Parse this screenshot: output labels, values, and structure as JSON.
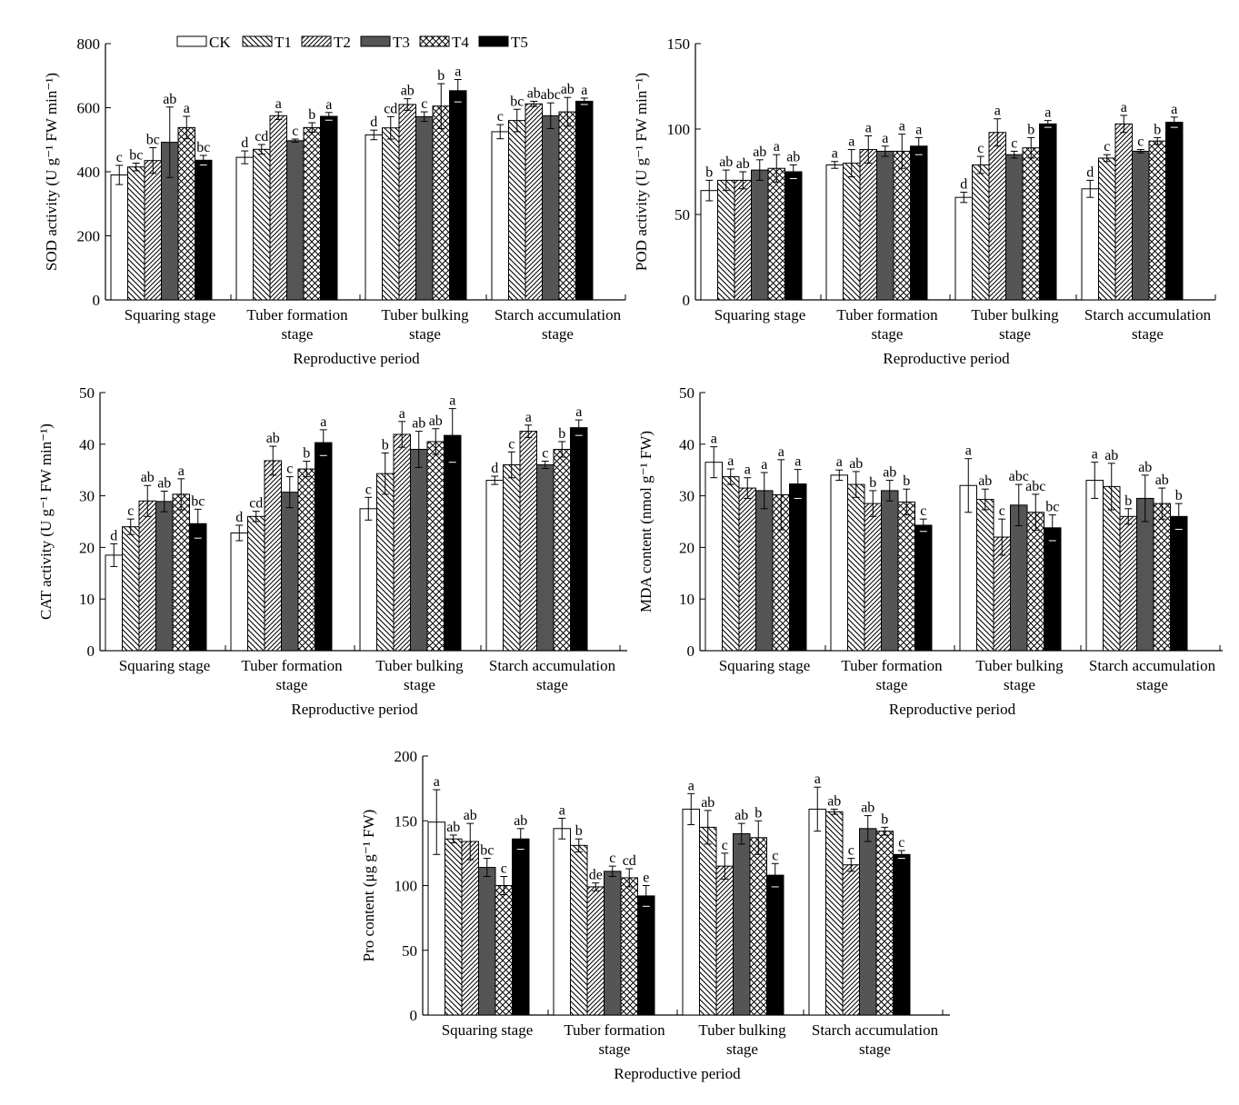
{
  "legend": {
    "items": [
      {
        "label": "CK",
        "pattern": "white"
      },
      {
        "label": "T1",
        "pattern": "back-hatch"
      },
      {
        "label": "T2",
        "pattern": "fwd-hatch"
      },
      {
        "label": "T3",
        "pattern": "dark-gray"
      },
      {
        "label": "T4",
        "pattern": "cross-hatch"
      },
      {
        "label": "T5",
        "pattern": "black"
      }
    ]
  },
  "chart_data": [
    {
      "type": "bar",
      "ylabel": "SOD activity (U g⁻¹ FW min⁻¹)",
      "xlabel": "Reproductive period",
      "ylim": [
        0,
        800
      ],
      "yticks": [
        0,
        200,
        400,
        600,
        800
      ],
      "categories": [
        "Squaring stage",
        "Tuber formation\nstage",
        "Tuber bulking\nstage",
        "Starch accumulation\nstage"
      ],
      "series": [
        {
          "name": "CK",
          "values": [
            390,
            445,
            515,
            525
          ],
          "errors": [
            30,
            20,
            15,
            22
          ],
          "letters": [
            "c",
            "d",
            "d",
            "c"
          ]
        },
        {
          "name": "T1",
          "values": [
            415,
            470,
            537,
            560
          ],
          "errors": [
            12,
            15,
            35,
            35
          ],
          "letters": [
            "bc",
            "cd",
            "cd",
            "bc"
          ]
        },
        {
          "name": "T2",
          "values": [
            435,
            575,
            610,
            612
          ],
          "errors": [
            40,
            12,
            18,
            8
          ],
          "letters": [
            "bc",
            "a",
            "ab",
            "ab"
          ]
        },
        {
          "name": "T3",
          "values": [
            492,
            497,
            572,
            575
          ],
          "errors": [
            110,
            5,
            15,
            40
          ],
          "letters": [
            "ab",
            "c",
            "c",
            "abc"
          ]
        },
        {
          "name": "T4",
          "values": [
            538,
            538,
            605,
            587
          ],
          "errors": [
            35,
            15,
            70,
            45
          ],
          "letters": [
            "a",
            "b",
            "b",
            "ab"
          ]
        },
        {
          "name": "T5",
          "values": [
            436,
            573,
            653,
            620
          ],
          "errors": [
            15,
            12,
            35,
            10
          ],
          "letters": [
            "bc",
            "a",
            "a",
            "a"
          ]
        }
      ]
    },
    {
      "type": "bar",
      "ylabel": "POD activity (U g⁻¹ FW min⁻¹)",
      "xlabel": "Reproductive period",
      "ylim": [
        0,
        150
      ],
      "yticks": [
        0,
        50,
        100,
        150
      ],
      "categories": [
        "Squaring stage",
        "Tuber formation\nstage",
        "Tuber bulking\nstage",
        "Starch accumulation\nstage"
      ],
      "series": [
        {
          "name": "CK",
          "values": [
            64,
            79,
            60,
            65
          ],
          "errors": [
            6,
            2,
            3,
            5
          ],
          "letters": [
            "b",
            "a",
            "d",
            "d"
          ]
        },
        {
          "name": "T1",
          "values": [
            70,
            80,
            79,
            83
          ],
          "errors": [
            6,
            8,
            5,
            2
          ],
          "letters": [
            "ab",
            "a",
            "c",
            "c"
          ]
        },
        {
          "name": "T2",
          "values": [
            70,
            88,
            98,
            103
          ],
          "errors": [
            5,
            8,
            8,
            5
          ],
          "letters": [
            "ab",
            "a",
            "a",
            "a"
          ]
        },
        {
          "name": "T3",
          "values": [
            76,
            87,
            85,
            87
          ],
          "errors": [
            6,
            3,
            2,
            1
          ],
          "letters": [
            "ab",
            "a",
            "c",
            "c"
          ]
        },
        {
          "name": "T4",
          "values": [
            77,
            87,
            89,
            93
          ],
          "errors": [
            8,
            10,
            6,
            2
          ],
          "letters": [
            "a",
            "a",
            "b",
            "b"
          ]
        },
        {
          "name": "T5",
          "values": [
            75,
            90,
            103,
            104
          ],
          "errors": [
            4,
            5,
            2,
            3
          ],
          "letters": [
            "ab",
            "a",
            "a",
            "a"
          ]
        }
      ]
    },
    {
      "type": "bar",
      "ylabel": "CAT activity (U g⁻¹ FW min⁻¹)",
      "xlabel": "Reproductive period",
      "ylim": [
        0,
        50
      ],
      "yticks": [
        0,
        10,
        20,
        30,
        40,
        50
      ],
      "categories": [
        "Squaring stage",
        "Tuber formation\nstage",
        "Tuber bulking\nstage",
        "Starch accumulation\nstage"
      ],
      "series": [
        {
          "name": "CK",
          "values": [
            18.5,
            22.8,
            27.5,
            33
          ],
          "errors": [
            2.2,
            1.5,
            2.2,
            0.8
          ],
          "letters": [
            "d",
            "d",
            "c",
            "d"
          ]
        },
        {
          "name": "T1",
          "values": [
            24,
            26,
            34.3,
            36
          ],
          "errors": [
            1.5,
            1,
            4,
            2.5
          ],
          "letters": [
            "c",
            "cd",
            "b",
            "c"
          ]
        },
        {
          "name": "T2",
          "values": [
            29,
            36.8,
            41.9,
            42.5
          ],
          "errors": [
            3,
            2.8,
            2.5,
            1.2
          ],
          "letters": [
            "ab",
            "ab",
            "a",
            "a"
          ]
        },
        {
          "name": "T3",
          "values": [
            28.9,
            30.7,
            39,
            36
          ],
          "errors": [
            2,
            3,
            3.5,
            0.7
          ],
          "letters": [
            "ab",
            "c",
            "ab",
            "c"
          ]
        },
        {
          "name": "T4",
          "values": [
            30.3,
            35.2,
            40.5,
            39
          ],
          "errors": [
            3,
            1.5,
            2.5,
            1.5
          ],
          "letters": [
            "a",
            "b",
            "ab",
            "b"
          ]
        },
        {
          "name": "T5",
          "values": [
            24.6,
            40.3,
            41.7,
            43.2
          ],
          "errors": [
            2.8,
            2.5,
            5.2,
            1.5
          ],
          "letters": [
            "bc",
            "a",
            "a",
            "a"
          ]
        }
      ]
    },
    {
      "type": "bar",
      "ylabel": "MDA content (nmol g⁻¹ FW)",
      "xlabel": "Reproductive period",
      "ylim": [
        0,
        50
      ],
      "yticks": [
        0,
        10,
        20,
        30,
        40,
        50
      ],
      "categories": [
        "Squaring stage",
        "Tuber formation\nstage",
        "Tuber bulking\nstage",
        "Starch accumulation\nstage"
      ],
      "series": [
        {
          "name": "CK",
          "values": [
            36.5,
            34,
            32,
            33
          ],
          "errors": [
            3,
            1,
            5.2,
            3.5
          ],
          "letters": [
            "a",
            "a",
            "a",
            "a"
          ]
        },
        {
          "name": "T1",
          "values": [
            33.7,
            32.2,
            29.3,
            31.8
          ],
          "errors": [
            1.5,
            2.5,
            2,
            4.5
          ],
          "letters": [
            "a",
            "ab",
            "ab",
            "ab"
          ]
        },
        {
          "name": "T2",
          "values": [
            31.5,
            28.5,
            22,
            26
          ],
          "errors": [
            2,
            2.5,
            3.5,
            1.5
          ],
          "letters": [
            "a",
            "b",
            "c",
            "b"
          ]
        },
        {
          "name": "T3",
          "values": [
            31,
            31,
            28.2,
            29.5
          ],
          "errors": [
            3.5,
            2,
            4,
            4.5
          ],
          "letters": [
            "a",
            "ab",
            "abc",
            "ab"
          ]
        },
        {
          "name": "T4",
          "values": [
            30.2,
            28.8,
            26.8,
            28.5
          ],
          "errors": [
            6.8,
            2.5,
            3.5,
            3
          ],
          "letters": [
            "a",
            "b",
            "abc",
            "ab"
          ]
        },
        {
          "name": "T5",
          "values": [
            32.3,
            24.3,
            23.8,
            26
          ],
          "errors": [
            2.8,
            1.2,
            2.5,
            2.5
          ],
          "letters": [
            "a",
            "c",
            "bc",
            "b"
          ]
        }
      ]
    },
    {
      "type": "bar",
      "ylabel": "Pro content (μg g⁻¹ FW)",
      "xlabel": "Reproductive period",
      "ylim": [
        0,
        200
      ],
      "yticks": [
        0,
        50,
        100,
        150,
        200
      ],
      "categories": [
        "Squaring stage",
        "Tuber formation\nstage",
        "Tuber bulking\nstage",
        "Starch accumulation\nstage"
      ],
      "series": [
        {
          "name": "CK",
          "values": [
            149,
            144,
            159,
            159
          ],
          "errors": [
            25,
            8,
            12,
            17
          ],
          "letters": [
            "a",
            "a",
            "a",
            "a"
          ]
        },
        {
          "name": "T1",
          "values": [
            136,
            131,
            145,
            157
          ],
          "errors": [
            3,
            5,
            13,
            2
          ],
          "letters": [
            "ab",
            "b",
            "ab",
            "ab"
          ]
        },
        {
          "name": "T2",
          "values": [
            134,
            99,
            115,
            116
          ],
          "errors": [
            14,
            3,
            10,
            5
          ],
          "letters": [
            "ab",
            "de",
            "c",
            "c"
          ]
        },
        {
          "name": "T3",
          "values": [
            114,
            111,
            140,
            144
          ],
          "errors": [
            7,
            4,
            8,
            10
          ],
          "letters": [
            "bc",
            "c",
            "ab",
            "ab"
          ]
        },
        {
          "name": "T4",
          "values": [
            100,
            106,
            137,
            142
          ],
          "errors": [
            7,
            7,
            13,
            3
          ],
          "letters": [
            "c",
            "cd",
            "b",
            "b"
          ]
        },
        {
          "name": "T5",
          "values": [
            136,
            92,
            108,
            124
          ],
          "errors": [
            8,
            8,
            9,
            3
          ],
          "letters": [
            "ab",
            "e",
            "c",
            "c"
          ]
        }
      ]
    }
  ]
}
